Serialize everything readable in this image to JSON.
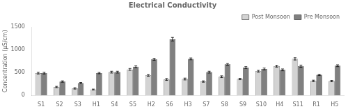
{
  "chart_data": {
    "type": "bar",
    "title": "Electrical Conductivity",
    "ylabel": "Concentration (µS/cm)",
    "categories": [
      "S1",
      "S2",
      "S3",
      "H1",
      "S4",
      "S5",
      "H2",
      "S6",
      "H3",
      "S7",
      "S8",
      "S9",
      "S10",
      "H4",
      "S11",
      "R1",
      "H5"
    ],
    "series": [
      {
        "name": "Post Monsoon",
        "color": "#d3d3d3",
        "values": [
          490,
          185,
          155,
          130,
          510,
          570,
          440,
          350,
          360,
          305,
          410,
          360,
          530,
          640,
          800,
          320,
          315
        ],
        "errors": [
          20,
          15,
          15,
          10,
          20,
          20,
          20,
          20,
          20,
          15,
          20,
          15,
          20,
          20,
          25,
          15,
          15
        ]
      },
      {
        "name": "Pre Monsoon",
        "color": "#808080",
        "values": [
          490,
          305,
          270,
          490,
          510,
          630,
          790,
          1230,
          800,
          510,
          680,
          610,
          580,
          560,
          640,
          450,
          650
        ],
        "errors": [
          20,
          15,
          15,
          15,
          20,
          20,
          20,
          40,
          20,
          20,
          20,
          20,
          20,
          20,
          25,
          15,
          20
        ]
      }
    ],
    "ylim": [
      0,
      1500
    ],
    "yticks": [
      0,
      500,
      1000,
      1500
    ],
    "grid": false,
    "legend": "upper right"
  }
}
